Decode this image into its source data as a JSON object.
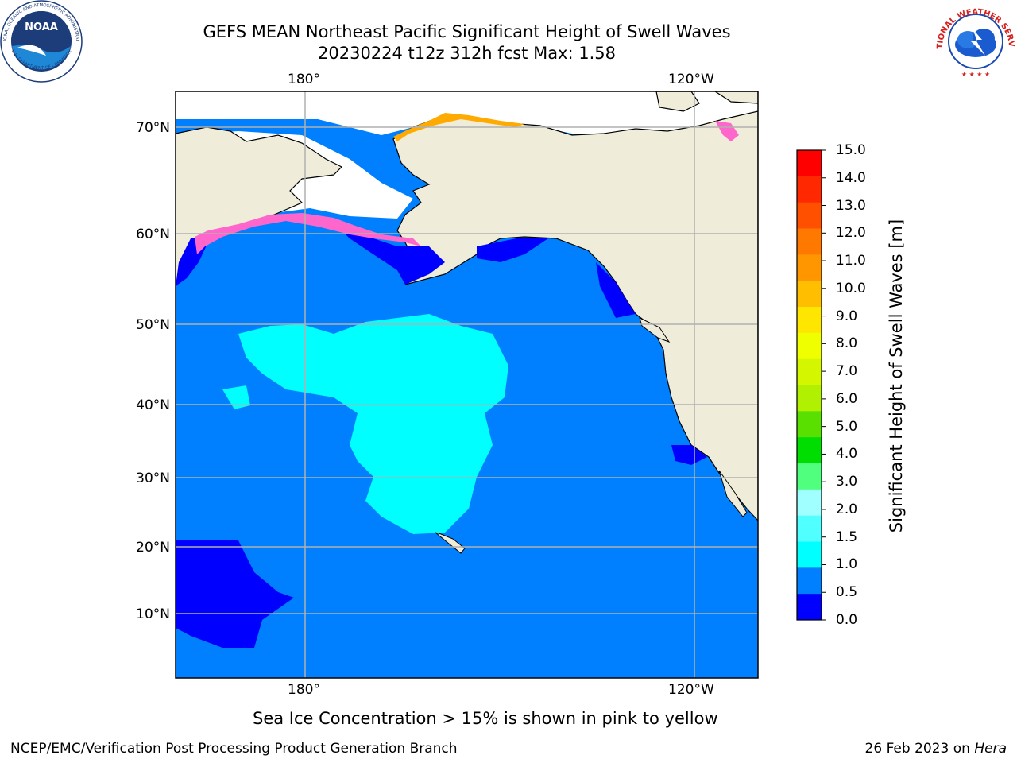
{
  "title": {
    "line1": "GEFS MEAN Northeast Pacific Significant Height of Swell Waves",
    "line2": "20230224 t12z 312h fcst   Max: 1.58"
  },
  "map": {
    "lat_labels": [
      "70°N",
      "60°N",
      "50°N",
      "40°N",
      "30°N",
      "20°N",
      "10°N"
    ],
    "lon_labels": [
      "180°",
      "120°W"
    ],
    "ocean_color": "#0080ff",
    "land_color": "#efedd9",
    "icons": [
      "noaa-logo",
      "nws-logo"
    ]
  },
  "colorbar": {
    "title": "Significant Height of Swell Waves [m]",
    "ticks": [
      "15.0",
      "14.0",
      "13.0",
      "12.0",
      "11.0",
      "10.0",
      "9.0",
      "8.0",
      "7.0",
      "6.0",
      "5.0",
      "4.0",
      "3.0",
      "2.0",
      "1.5",
      "1.0",
      "0.5",
      "0.0"
    ],
    "colors_top_to_bottom": [
      "#ff0000",
      "#ff2800",
      "#ff5000",
      "#ff7800",
      "#ff9600",
      "#ffbe00",
      "#ffe600",
      "#f0ff00",
      "#d4f700",
      "#b0f000",
      "#5ae000",
      "#00dd00",
      "#50ff7d",
      "#a0ffff",
      "#50ffff",
      "#00ffff",
      "#0080ff",
      "#0000ff"
    ]
  },
  "footer": {
    "note": "Sea Ice Concentration > 15% is shown in pink to yellow",
    "credit": "NCEP/EMC/Verification Post Processing Product Generation Branch",
    "date_prefix": "26 Feb 2023 on ",
    "date_machine": "Hera"
  }
}
